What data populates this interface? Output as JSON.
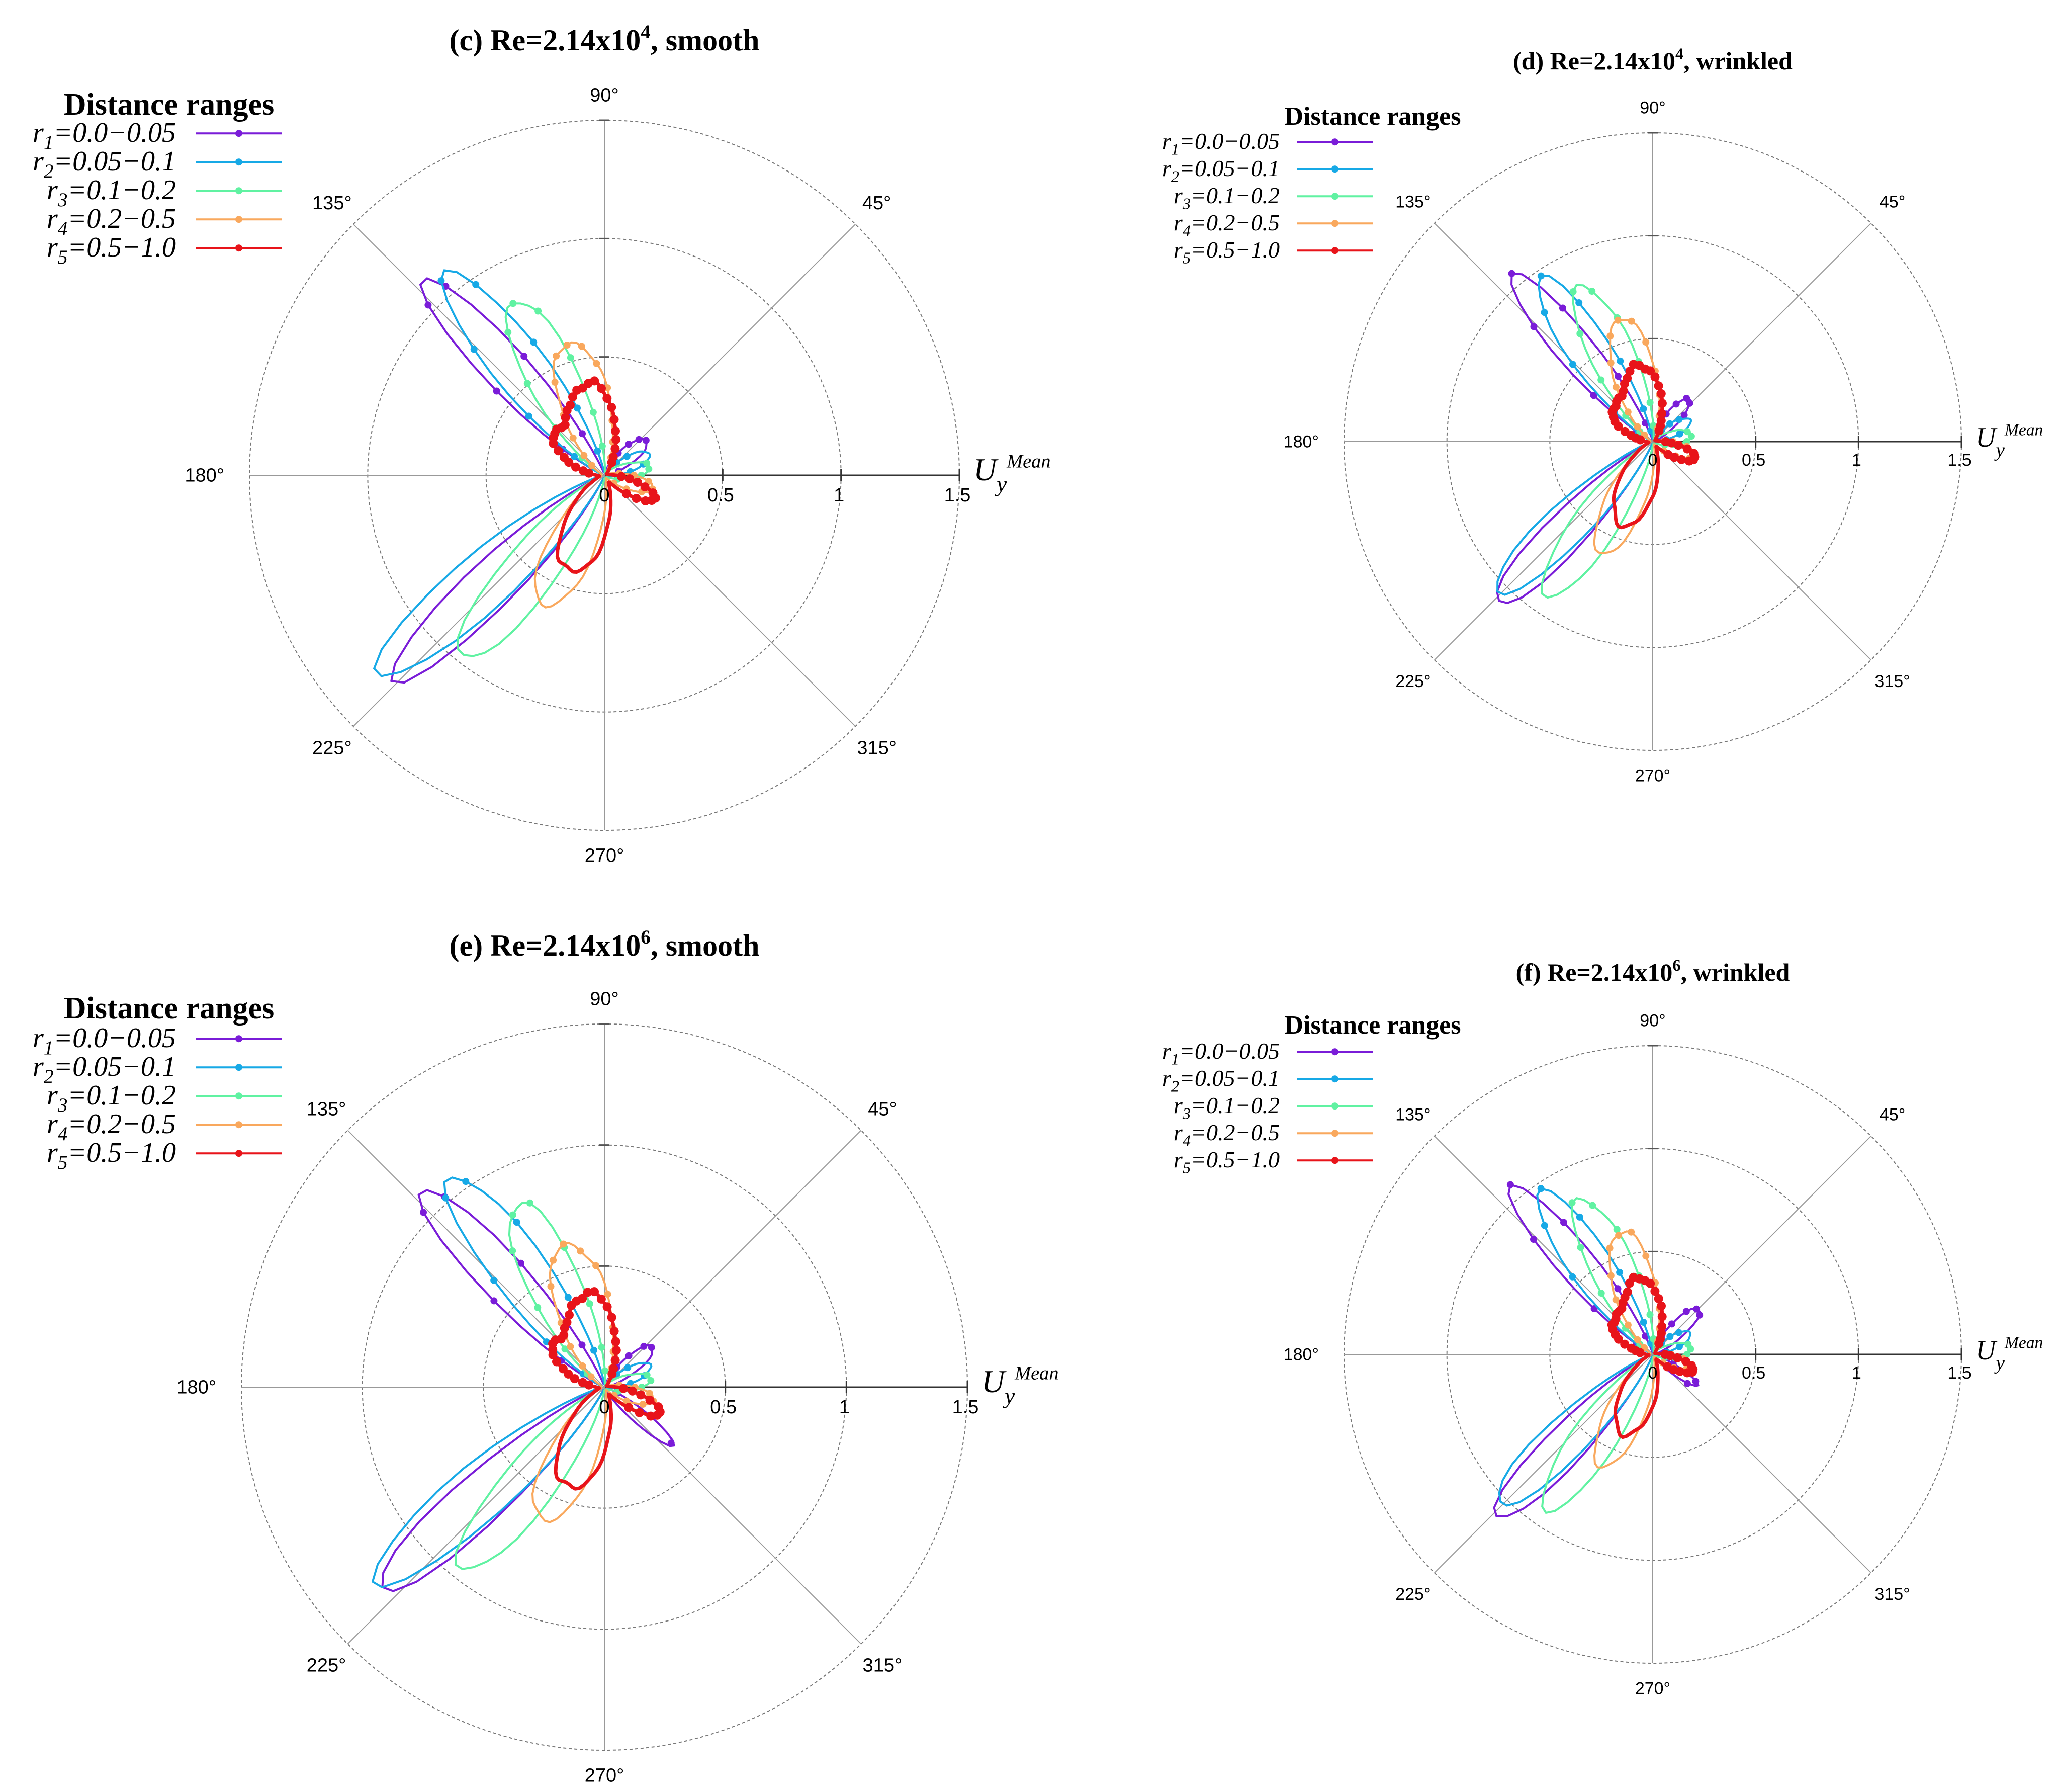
{
  "chart_data": [
    {
      "panel": "c",
      "type": "polar-line",
      "title_prefix": "(c) Re=2.14x10",
      "title_exponent": "4",
      "title_suffix": ", smooth",
      "radial_label_main": "U",
      "radial_label_sub": "y",
      "radial_label_sup": "Mean",
      "rlim": [
        0,
        1.5
      ],
      "radial_ticks": [
        "0",
        "0.5",
        "1",
        "1.5"
      ],
      "angle_ticks": [
        "90°",
        "45°",
        "180°",
        "135°",
        "225°",
        "315°",
        "270°"
      ],
      "legend_title": "Distance ranges",
      "series": [
        {
          "label_sym": "r",
          "label_sub": "1",
          "label_range": "=0.0−0.05",
          "color": "#7a1cd8",
          "lobes": [
            {
              "c": 133,
              "r": 1.1,
              "w": 8
            },
            {
              "c": 224,
              "r": 1.2,
              "w": 8
            },
            {
              "c": 40,
              "r": 0.22,
              "w": 14
            }
          ]
        },
        {
          "label_sym": "r",
          "label_sub": "2",
          "label_range": "=0.05−0.1",
          "color": "#17a9e6",
          "lobes": [
            {
              "c": 128,
              "r": 1.05,
              "w": 10
            },
            {
              "c": 221,
              "r": 1.25,
              "w": 9
            },
            {
              "c": 25,
              "r": 0.2,
              "w": 14
            }
          ]
        },
        {
          "label_sym": "r",
          "label_sub": "3",
          "label_range": "=0.1−0.2",
          "color": "#60f2a2",
          "lobes": [
            {
              "c": 118,
              "r": 0.82,
              "w": 12
            },
            {
              "c": 232,
              "r": 0.95,
              "w": 11
            },
            {
              "c": 10,
              "r": 0.18,
              "w": 16
            }
          ]
        },
        {
          "label_sym": "r",
          "label_sub": "4",
          "label_range": "=0.2−0.5",
          "color": "#f9a85d",
          "lobes": [
            {
              "c": 105,
              "r": 0.57,
              "w": 17
            },
            {
              "c": 245,
              "r": 0.6,
              "w": 15
            },
            {
              "c": -15,
              "r": 0.2,
              "w": 14
            }
          ]
        },
        {
          "label_sym": "r",
          "label_sub": "5",
          "label_range": "=0.5−1.0",
          "color": "#e8141a",
          "lobes": [
            {
              "c": 100,
              "r": 0.38,
              "w": 20
            },
            {
              "c": 250,
              "r": 0.42,
              "w": 20
            },
            {
              "c": -25,
              "r": 0.22,
              "w": 13
            },
            {
              "c": 145,
              "r": 0.22,
              "w": 16
            }
          ]
        }
      ]
    },
    {
      "panel": "d",
      "type": "polar-line",
      "title_prefix": "(d) Re=2.14x10",
      "title_exponent": "4",
      "title_suffix": ", wrinkled",
      "radial_label_main": "U",
      "radial_label_sub": "y",
      "radial_label_sup": "Mean",
      "rlim": [
        0,
        1.5
      ],
      "radial_ticks": [
        "0",
        "0.5",
        "1",
        "1.5"
      ],
      "angle_ticks": [
        "90°",
        "45°",
        "180°",
        "135°",
        "225°",
        "315°",
        "270°"
      ],
      "legend_title": "Distance ranges",
      "series": [
        {
          "label_sym": "r",
          "label_sub": "1",
          "label_range": "=0.0−0.05",
          "color": "#7a1cd8",
          "lobes": [
            {
              "c": 130,
              "r": 1.05,
              "w": 8
            },
            {
              "c": 226,
              "r": 1.1,
              "w": 8
            },
            {
              "c": 50,
              "r": 0.26,
              "w": 12
            }
          ]
        },
        {
          "label_sym": "r",
          "label_sub": "2",
          "label_range": "=0.05−0.1",
          "color": "#17a9e6",
          "lobes": [
            {
              "c": 125,
              "r": 0.95,
              "w": 10
            },
            {
              "c": 224,
              "r": 1.05,
              "w": 9
            },
            {
              "c": 30,
              "r": 0.2,
              "w": 14
            }
          ]
        },
        {
          "label_sym": "r",
          "label_sub": "3",
          "label_range": "=0.1−0.2",
          "color": "#60f2a2",
          "lobes": [
            {
              "c": 115,
              "r": 0.82,
              "w": 12
            },
            {
              "c": 235,
              "r": 0.9,
              "w": 11
            },
            {
              "c": 10,
              "r": 0.18,
              "w": 16
            }
          ]
        },
        {
          "label_sym": "r",
          "label_sub": "4",
          "label_range": "=0.2−0.5",
          "color": "#f9a85d",
          "lobes": [
            {
              "c": 105,
              "r": 0.6,
              "w": 16
            },
            {
              "c": 245,
              "r": 0.58,
              "w": 15
            },
            {
              "c": -18,
              "r": 0.2,
              "w": 14
            }
          ]
        },
        {
          "label_sym": "r",
          "label_sub": "5",
          "label_range": "=0.5−1.0",
          "color": "#e8141a",
          "lobes": [
            {
              "c": 100,
              "r": 0.36,
              "w": 20
            },
            {
              "c": 250,
              "r": 0.42,
              "w": 20
            },
            {
              "c": -22,
              "r": 0.21,
              "w": 13
            },
            {
              "c": 145,
              "r": 0.2,
              "w": 16
            }
          ]
        }
      ]
    },
    {
      "panel": "e",
      "type": "polar-line",
      "title_prefix": "(e) Re=2.14x10",
      "title_exponent": "6",
      "title_suffix": ", smooth",
      "radial_label_main": "U",
      "radial_label_sub": "y",
      "radial_label_sup": "Mean",
      "rlim": [
        0,
        1.5
      ],
      "radial_ticks": [
        "0",
        "0.5",
        "1",
        "1.5"
      ],
      "angle_ticks": [
        "90°",
        "45°",
        "180°",
        "135°",
        "225°",
        "315°",
        "270°"
      ],
      "legend_title": "Distance ranges",
      "series": [
        {
          "label_sym": "r",
          "label_sub": "1",
          "label_range": "=0.0−0.05",
          "color": "#7a1cd8",
          "lobes": [
            {
              "c": 133,
              "r": 1.1,
              "w": 8
            },
            {
              "c": 222,
              "r": 1.22,
              "w": 8
            },
            {
              "c": -40,
              "r": 0.35,
              "w": 8
            },
            {
              "c": 40,
              "r": 0.25,
              "w": 12
            }
          ]
        },
        {
          "label_sym": "r",
          "label_sub": "2",
          "label_range": "=0.05−0.1",
          "color": "#17a9e6",
          "lobes": [
            {
              "c": 126,
              "r": 1.05,
              "w": 10
            },
            {
              "c": 220,
              "r": 1.22,
              "w": 9
            },
            {
              "c": 25,
              "r": 0.2,
              "w": 14
            }
          ]
        },
        {
          "label_sym": "r",
          "label_sub": "3",
          "label_range": "=0.1−0.2",
          "color": "#60f2a2",
          "lobes": [
            {
              "c": 116,
              "r": 0.83,
              "w": 12
            },
            {
              "c": 232,
              "r": 0.93,
              "w": 11
            },
            {
              "c": 10,
              "r": 0.18,
              "w": 16
            }
          ]
        },
        {
          "label_sym": "r",
          "label_sub": "4",
          "label_range": "=0.2−0.5",
          "color": "#f9a85d",
          "lobes": [
            {
              "c": 105,
              "r": 0.6,
              "w": 17
            },
            {
              "c": 245,
              "r": 0.6,
              "w": 15
            },
            {
              "c": -15,
              "r": 0.2,
              "w": 14
            }
          ]
        },
        {
          "label_sym": "r",
          "label_sub": "5",
          "label_range": "=0.5−1.0",
          "color": "#e8141a",
          "lobes": [
            {
              "c": 100,
              "r": 0.38,
              "w": 20
            },
            {
              "c": 250,
              "r": 0.43,
              "w": 20
            },
            {
              "c": -25,
              "r": 0.24,
              "w": 13
            },
            {
              "c": 145,
              "r": 0.22,
              "w": 16
            }
          ]
        }
      ]
    },
    {
      "panel": "f",
      "type": "polar-line",
      "title_prefix": "(f) Re=2.14x10",
      "title_exponent": "6",
      "title_suffix": ", wrinkled",
      "radial_label_main": "U",
      "radial_label_sub": "y",
      "radial_label_sup": "Mean",
      "rlim": [
        0,
        1.5
      ],
      "radial_ticks": [
        "0",
        "0.5",
        "1",
        "1.5"
      ],
      "angle_ticks": [
        "90°",
        "45°",
        "180°",
        "135°",
        "225°",
        "315°",
        "270°"
      ],
      "legend_title": "Distance ranges",
      "series": [
        {
          "label_sym": "r",
          "label_sub": "1",
          "label_range": "=0.0−0.05",
          "color": "#7a1cd8",
          "lobes": [
            {
              "c": 130,
              "r": 1.05,
              "w": 8
            },
            {
              "c": 226,
              "r": 1.1,
              "w": 8
            },
            {
              "c": -35,
              "r": 0.25,
              "w": 8
            },
            {
              "c": 45,
              "r": 0.3,
              "w": 12
            }
          ]
        },
        {
          "label_sym": "r",
          "label_sub": "2",
          "label_range": "=0.05−0.1",
          "color": "#17a9e6",
          "lobes": [
            {
              "c": 125,
              "r": 0.95,
              "w": 10
            },
            {
              "c": 224,
              "r": 1.05,
              "w": 9
            },
            {
              "c": 30,
              "r": 0.2,
              "w": 14
            }
          ]
        },
        {
          "label_sym": "r",
          "label_sub": "3",
          "label_range": "=0.1−0.2",
          "color": "#60f2a2",
          "lobes": [
            {
              "c": 115,
              "r": 0.82,
              "w": 12
            },
            {
              "c": 235,
              "r": 0.9,
              "w": 11
            },
            {
              "c": 10,
              "r": 0.18,
              "w": 16
            }
          ]
        },
        {
          "label_sym": "r",
          "label_sub": "4",
          "label_range": "=0.2−0.5",
          "color": "#f9a85d",
          "lobes": [
            {
              "c": 105,
              "r": 0.6,
              "w": 16
            },
            {
              "c": 245,
              "r": 0.58,
              "w": 15
            },
            {
              "c": -18,
              "r": 0.18,
              "w": 14
            }
          ]
        },
        {
          "label_sym": "r",
          "label_sub": "5",
          "label_range": "=0.5−1.0",
          "color": "#e8141a",
          "lobes": [
            {
              "c": 100,
              "r": 0.36,
              "w": 20
            },
            {
              "c": 250,
              "r": 0.4,
              "w": 20
            },
            {
              "c": -22,
              "r": 0.2,
              "w": 13
            },
            {
              "c": 145,
              "r": 0.2,
              "w": 16
            }
          ]
        }
      ]
    }
  ]
}
